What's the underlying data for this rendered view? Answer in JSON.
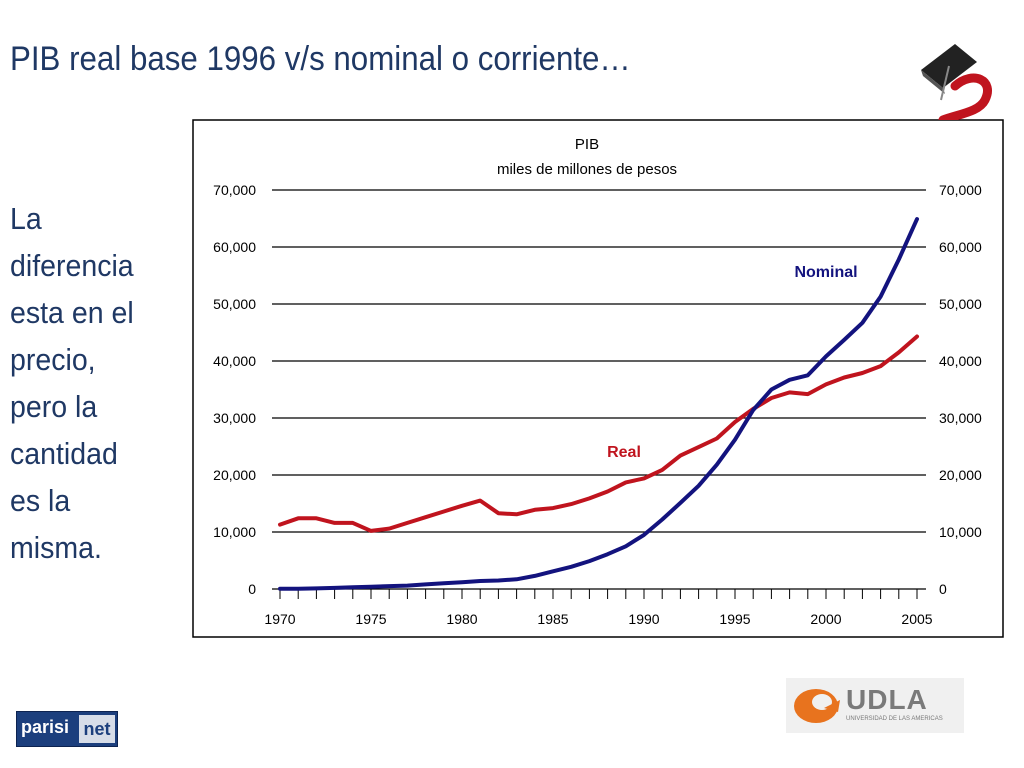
{
  "slide": {
    "title": "PIB real base 1996 v/s nominal o corriente…",
    "side_text_lines": [
      "La",
      "diferencia",
      "esta en el",
      "precio,",
      "pero la",
      "cantidad",
      "es la",
      "misma."
    ]
  },
  "logos": {
    "parisi_part1": "parisi",
    "parisi_part2": "net",
    "udla_word": "UDLA",
    "udla_sub": "UNIVERSIDAD DE LAS AMERICAS"
  },
  "chart_data": {
    "type": "line",
    "title": "PIB",
    "subtitle": "miles de millones de pesos",
    "ylim": [
      0,
      70000
    ],
    "xlim": [
      1970,
      2005
    ],
    "y_ticks": [
      "0",
      "10,000",
      "20,000",
      "30,000",
      "40,000",
      "50,000",
      "60,000",
      "70,000"
    ],
    "x_ticks": [
      "1970",
      "1975",
      "1980",
      "1985",
      "1990",
      "1995",
      "2000",
      "2005"
    ],
    "grid": true,
    "dual_y_axis_labels": true,
    "x": [
      1970,
      1971,
      1972,
      1973,
      1974,
      1975,
      1976,
      1977,
      1978,
      1979,
      1980,
      1981,
      1982,
      1983,
      1984,
      1985,
      1986,
      1987,
      1988,
      1989,
      1990,
      1991,
      1992,
      1993,
      1994,
      1995,
      1996,
      1997,
      1998,
      1999,
      2000,
      2001,
      2002,
      2003,
      2004,
      2005
    ],
    "series": [
      {
        "name": "Real",
        "color": "#c0141e",
        "values": [
          11300,
          12400,
          12400,
          11600,
          11600,
          10200,
          10600,
          11600,
          12600,
          13600,
          14600,
          15500,
          13300,
          13100,
          13900,
          14200,
          14900,
          15900,
          17100,
          18700,
          19400,
          20900,
          23400,
          24900,
          26400,
          29300,
          31600,
          33500,
          34500,
          34200,
          35900,
          37100,
          37900,
          39100,
          41500,
          44300
        ]
      },
      {
        "name": "Nominal",
        "color": "#13137e",
        "values": [
          40,
          60,
          100,
          200,
          300,
          400,
          500,
          600,
          800,
          1000,
          1200,
          1400,
          1500,
          1700,
          2300,
          3100,
          3900,
          4900,
          6100,
          7500,
          9500,
          12200,
          15100,
          18100,
          21800,
          26200,
          31400,
          35000,
          36700,
          37500,
          40800,
          43700,
          46700,
          51300,
          57800,
          64900
        ]
      }
    ],
    "annotations": [
      {
        "text": "Real",
        "color": "#c0141e"
      },
      {
        "text": "Nominal",
        "color": "#13137e"
      }
    ]
  }
}
